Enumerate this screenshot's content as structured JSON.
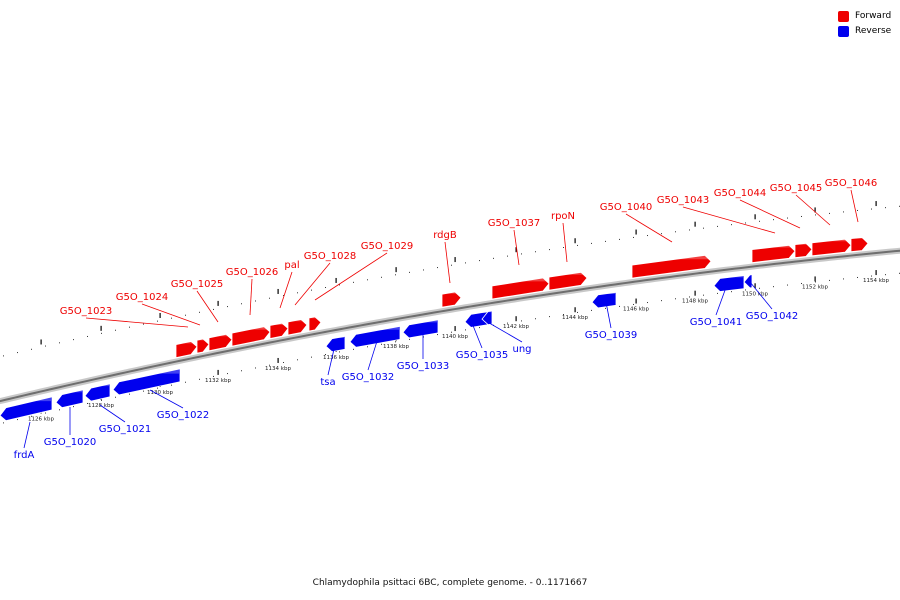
{
  "caption": "Chlamydophila psittaci 6BC, complete genome. - 0..1171667",
  "legend": [
    {
      "label": "Forward",
      "color": "#ee0000"
    },
    {
      "label": "Reverse",
      "color": "#0000ee"
    }
  ],
  "colors": {
    "forward": "#ee0000",
    "reverse": "#0000ee",
    "backbone": "#777777"
  },
  "ticks": [
    {
      "label": "1126 kbp"
    },
    {
      "label": "1128 kbp"
    },
    {
      "label": "1130 kbp"
    },
    {
      "label": "1132 kbp"
    },
    {
      "label": "1134 kbp"
    },
    {
      "label": "1136 kbp"
    },
    {
      "label": "1138 kbp"
    },
    {
      "label": "1140 kbp"
    },
    {
      "label": "1142 kbp"
    },
    {
      "label": "1144 kbp"
    },
    {
      "label": "1146 kbp"
    },
    {
      "label": "1148 kbp"
    },
    {
      "label": "1150 kbp"
    },
    {
      "label": "1152 kbp"
    },
    {
      "label": "1154 kbp"
    }
  ],
  "genes": [
    {
      "name": "frdA",
      "strand": "reverse"
    },
    {
      "name": "G5O_1020",
      "strand": "reverse"
    },
    {
      "name": "G5O_1021",
      "strand": "reverse"
    },
    {
      "name": "G5O_1022",
      "strand": "reverse"
    },
    {
      "name": "G5O_1023",
      "strand": "forward"
    },
    {
      "name": "G5O_1024",
      "strand": "forward"
    },
    {
      "name": "G5O_1025",
      "strand": "forward"
    },
    {
      "name": "G5O_1026",
      "strand": "forward"
    },
    {
      "name": "pal",
      "strand": "forward"
    },
    {
      "name": "G5O_1028",
      "strand": "forward"
    },
    {
      "name": "G5O_1029",
      "strand": "forward"
    },
    {
      "name": "tsa",
      "strand": "reverse"
    },
    {
      "name": "G5O_1032",
      "strand": "reverse"
    },
    {
      "name": "G5O_1033",
      "strand": "reverse"
    },
    {
      "name": "G5O_1035",
      "strand": "reverse"
    },
    {
      "name": "ung",
      "strand": "reverse"
    },
    {
      "name": "rdgB",
      "strand": "forward"
    },
    {
      "name": "G5O_1037",
      "strand": "forward"
    },
    {
      "name": "rpoN",
      "strand": "forward"
    },
    {
      "name": "G5O_1039",
      "strand": "reverse"
    },
    {
      "name": "G5O_1040",
      "strand": "forward"
    },
    {
      "name": "G5O_1041",
      "strand": "reverse"
    },
    {
      "name": "G5O_1042",
      "strand": "reverse"
    },
    {
      "name": "G5O_1043",
      "strand": "forward"
    },
    {
      "name": "G5O_1044",
      "strand": "forward"
    },
    {
      "name": "G5O_1045",
      "strand": "forward"
    },
    {
      "name": "G5O_1046",
      "strand": "forward"
    }
  ]
}
